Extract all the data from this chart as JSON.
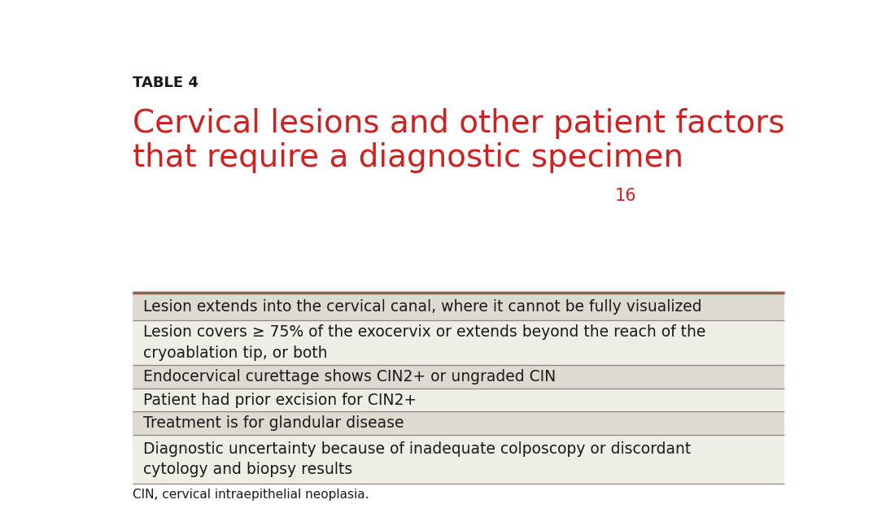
{
  "table_label": "TABLE 4",
  "title_line1": "Cervical lesions and other patient factors",
  "title_line2": "that require a diagnostic specimen",
  "superscript": "16",
  "title_color": "#cc2222",
  "label_color": "#1a1a1a",
  "background_color": "#ffffff",
  "row_bg_odd": "#dedad2",
  "row_bg_even": "#f0ede6",
  "divider_color": "#888880",
  "top_rule_color": "#cc2222",
  "text_color": "#1a1a1a",
  "footer_text": "CIN, cervical intraepithelial neoplasia.",
  "rows": [
    "Lesion extends into the cervical canal, where it cannot be fully visualized",
    "Lesion covers ≥ 75% of the exocervix or extends beyond the reach of the\ncryoablation tip, or both",
    "Endocervical curettage shows CIN2+ or ungraded CIN",
    "Patient had prior excision for CIN2+",
    "Treatment is for glandular disease",
    "Diagnostic uncertainty because of inadequate colposcopy or discordant\ncytology and biopsy results"
  ]
}
